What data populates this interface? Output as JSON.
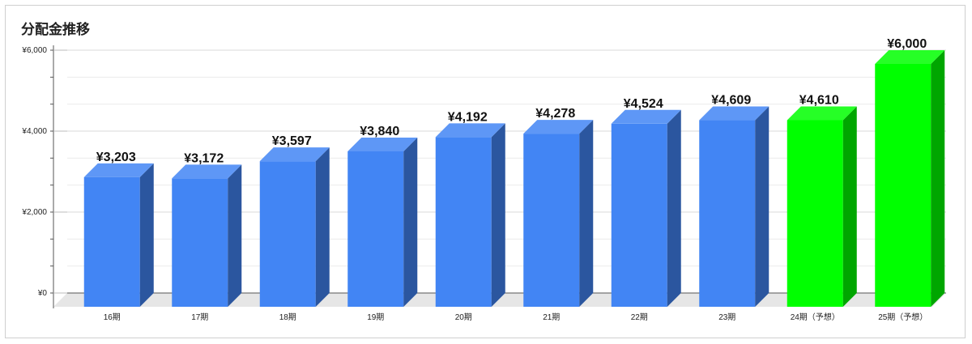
{
  "chart_data": {
    "type": "bar",
    "title": "分配金推移",
    "categories": [
      "16期",
      "17期",
      "18期",
      "19期",
      "20期",
      "21期",
      "22期",
      "23期",
      "24期（予想）",
      "25期（予想）"
    ],
    "values": [
      3203,
      3172,
      3597,
      3840,
      4192,
      4278,
      4524,
      4609,
      4610,
      6000
    ],
    "value_labels": [
      "¥3,203",
      "¥3,172",
      "¥3,597",
      "¥3,840",
      "¥4,192",
      "¥4,278",
      "¥4,524",
      "¥4,609",
      "¥4,610",
      "¥6,000"
    ],
    "bar_colors": [
      "#4285f4",
      "#4285f4",
      "#4285f4",
      "#4285f4",
      "#4285f4",
      "#4285f4",
      "#4285f4",
      "#4285f4",
      "#00ff00",
      "#00ff00"
    ],
    "ylim": [
      0,
      6000
    ],
    "yticks": [
      0,
      2000,
      4000,
      6000
    ],
    "ytick_labels": [
      "¥0",
      "¥2,000",
      "¥4,000",
      "¥6,000"
    ],
    "grid": true,
    "style": "3d"
  }
}
